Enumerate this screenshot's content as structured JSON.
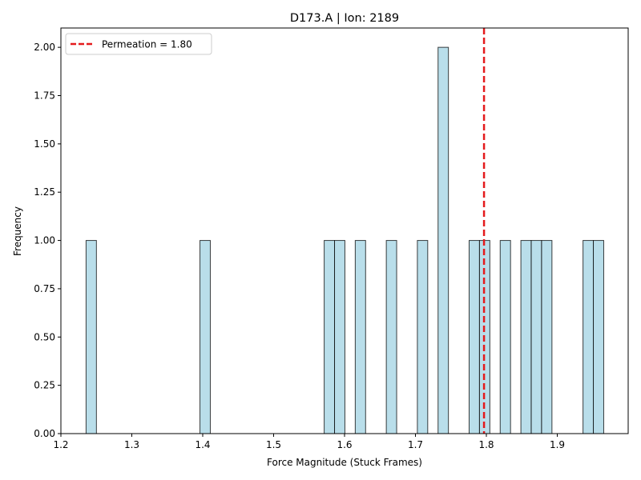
{
  "chart_data": {
    "type": "bar",
    "title": "D173.A | Ion: 2189",
    "xlabel": "Force Magnitude (Stuck Frames)",
    "ylabel": "Frequency",
    "xlim": [
      1.2,
      2.0
    ],
    "ylim": [
      0,
      2.1
    ],
    "xticks": [
      1.2,
      1.3,
      1.4,
      1.5,
      1.6,
      1.7,
      1.8,
      1.9
    ],
    "xtick_labels": [
      "1.2",
      "1.3",
      "1.4",
      "1.5",
      "1.6",
      "1.7",
      "1.8",
      "1.9"
    ],
    "yticks": [
      0,
      0.25,
      0.5,
      0.75,
      1.0,
      1.25,
      1.5,
      1.75,
      2.0
    ],
    "ytick_labels": [
      "0.00",
      "0.25",
      "0.50",
      "0.75",
      "1.00",
      "1.25",
      "1.50",
      "1.75",
      "2.00"
    ],
    "bin_width": 0.0146,
    "bins": [
      {
        "start": 1.2355,
        "count": 1
      },
      {
        "start": 1.3961,
        "count": 1
      },
      {
        "start": 1.5713,
        "count": 1
      },
      {
        "start": 1.5859,
        "count": 1
      },
      {
        "start": 1.6151,
        "count": 1
      },
      {
        "start": 1.6589,
        "count": 1
      },
      {
        "start": 1.7027,
        "count": 1
      },
      {
        "start": 1.7319,
        "count": 2
      },
      {
        "start": 1.7757,
        "count": 1
      },
      {
        "start": 1.7903,
        "count": 1
      },
      {
        "start": 1.8195,
        "count": 1
      },
      {
        "start": 1.8487,
        "count": 1
      },
      {
        "start": 1.8633,
        "count": 1
      },
      {
        "start": 1.8779,
        "count": 1
      },
      {
        "start": 1.9363,
        "count": 1
      },
      {
        "start": 1.9509,
        "count": 1
      }
    ],
    "bar_color": "#add8e6",
    "bar_edge_color": "#000000",
    "reference_line": {
      "x": 1.7967,
      "label": "Permeation = 1.80",
      "color": "#e41a1c",
      "style": "dashed"
    },
    "legend": {
      "position": "top-left",
      "entries": [
        "Permeation = 1.80"
      ]
    },
    "grid": false
  }
}
